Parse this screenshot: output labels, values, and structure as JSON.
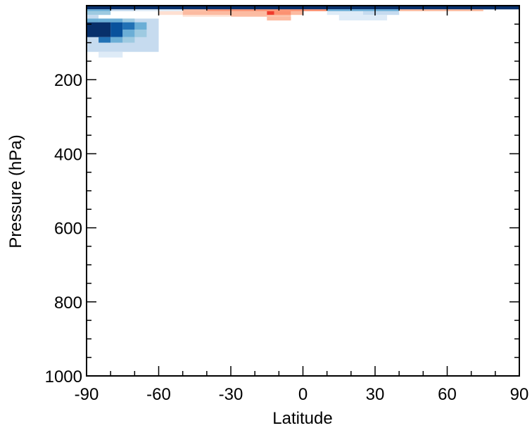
{
  "chart_data": {
    "type": "heatmap",
    "title": "",
    "xlabel": "Latitude",
    "ylabel": "Pressure (hPa)",
    "xlim": [
      -90,
      90
    ],
    "ylim": [
      1000,
      0
    ],
    "x_ticks": [
      -90,
      -60,
      -30,
      0,
      30,
      60,
      90
    ],
    "x_tick_labels": [
      "-90",
      "-60",
      "-30",
      "0",
      "30",
      "60",
      "90"
    ],
    "y_ticks": [
      200,
      400,
      600,
      800,
      1000
    ],
    "y_tick_labels": [
      "200",
      "400",
      "600",
      "800",
      "1000"
    ],
    "x_minor_step": 10,
    "y_minor_step": 50,
    "grid": false,
    "legend": "none",
    "cells": [
      {
        "lat": [
          -90,
          90
        ],
        "p": [
          0,
          10
        ],
        "color": "#08306b"
      },
      {
        "lat": [
          -90,
          -80
        ],
        "p": [
          10,
          15
        ],
        "color": "#6baed6"
      },
      {
        "lat": [
          -80,
          -70
        ],
        "p": [
          10,
          15
        ],
        "color": "#c6dbef"
      },
      {
        "lat": [
          -70,
          -50
        ],
        "p": [
          10,
          15
        ],
        "color": "#deebf7"
      },
      {
        "lat": [
          -50,
          -40
        ],
        "p": [
          10,
          15
        ],
        "color": "#fcbba1"
      },
      {
        "lat": [
          -40,
          10
        ],
        "p": [
          10,
          15
        ],
        "color": "#fc9272"
      },
      {
        "lat": [
          10,
          40
        ],
        "p": [
          10,
          15
        ],
        "color": "#6baed6"
      },
      {
        "lat": [
          40,
          75
        ],
        "p": [
          10,
          15
        ],
        "color": "#fcbba1"
      },
      {
        "lat": [
          -90,
          -80
        ],
        "p": [
          15,
          25
        ],
        "color": "#9ecae1"
      },
      {
        "lat": [
          -60,
          -50
        ],
        "p": [
          15,
          25
        ],
        "color": "#fee0d2"
      },
      {
        "lat": [
          -50,
          -30
        ],
        "p": [
          15,
          25
        ],
        "color": "#fcbba1"
      },
      {
        "lat": [
          -30,
          -15
        ],
        "p": [
          15,
          25
        ],
        "color": "#fcbba1"
      },
      {
        "lat": [
          -15,
          -12
        ],
        "p": [
          15,
          25
        ],
        "color": "#ef3b2c"
      },
      {
        "lat": [
          -12,
          -5
        ],
        "p": [
          15,
          25
        ],
        "color": "#fc9272"
      },
      {
        "lat": [
          -5,
          0
        ],
        "p": [
          15,
          25
        ],
        "color": "#fcbba1"
      },
      {
        "lat": [
          10,
          25
        ],
        "p": [
          15,
          25
        ],
        "color": "#deebf7"
      },
      {
        "lat": [
          25,
          40
        ],
        "p": [
          15,
          25
        ],
        "color": "#c6dbef"
      },
      {
        "lat": [
          -50,
          -30
        ],
        "p": [
          25,
          30
        ],
        "color": "#fee0d2"
      },
      {
        "lat": [
          -30,
          -5
        ],
        "p": [
          25,
          30
        ],
        "color": "#fcbba1"
      },
      {
        "lat": [
          15,
          35
        ],
        "p": [
          25,
          40
        ],
        "color": "#deebf7"
      },
      {
        "lat": [
          -15,
          -5
        ],
        "p": [
          30,
          40
        ],
        "color": "#fcbba1"
      },
      {
        "lat": [
          -90,
          -85
        ],
        "p": [
          25,
          35
        ],
        "color": "#c6dbef"
      },
      {
        "lat": [
          -90,
          -60
        ],
        "p": [
          35,
          125
        ],
        "color": "#c6dbef"
      },
      {
        "lat": [
          -90,
          -85
        ],
        "p": [
          35,
          45
        ],
        "color": "#6baed6"
      },
      {
        "lat": [
          -85,
          -75
        ],
        "p": [
          35,
          45
        ],
        "color": "#6baed6"
      },
      {
        "lat": [
          -75,
          -70
        ],
        "p": [
          35,
          45
        ],
        "color": "#9ecae1"
      },
      {
        "lat": [
          -90,
          -80
        ],
        "p": [
          45,
          85
        ],
        "color": "#08306b"
      },
      {
        "lat": [
          -80,
          -75
        ],
        "p": [
          45,
          85
        ],
        "color": "#08519c"
      },
      {
        "lat": [
          -75,
          -70
        ],
        "p": [
          45,
          65
        ],
        "color": "#2171b5"
      },
      {
        "lat": [
          -70,
          -65
        ],
        "p": [
          45,
          65
        ],
        "color": "#6baed6"
      },
      {
        "lat": [
          -75,
          -70
        ],
        "p": [
          65,
          85
        ],
        "color": "#6baed6"
      },
      {
        "lat": [
          -70,
          -65
        ],
        "p": [
          65,
          85
        ],
        "color": "#9ecae1"
      },
      {
        "lat": [
          -85,
          -80
        ],
        "p": [
          85,
          100
        ],
        "color": "#2171b5"
      },
      {
        "lat": [
          -80,
          -75
        ],
        "p": [
          85,
          100
        ],
        "color": "#6baed6"
      },
      {
        "lat": [
          -75,
          -70
        ],
        "p": [
          85,
          100
        ],
        "color": "#9ecae1"
      },
      {
        "lat": [
          -85,
          -75
        ],
        "p": [
          125,
          140
        ],
        "color": "#deebf7"
      }
    ]
  }
}
